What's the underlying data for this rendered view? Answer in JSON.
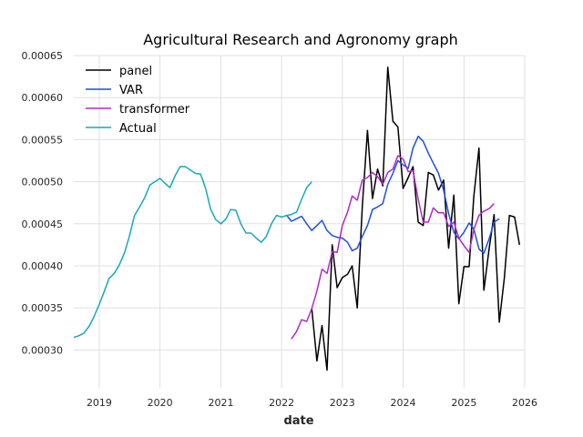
{
  "chart_data": {
    "type": "line",
    "title": "Agricultural Research and Agronomy graph",
    "xlabel": "date",
    "ylabel": "",
    "xlim": [
      "2018-08-01",
      "2026-01-01"
    ],
    "ylim": [
      0.000255,
      0.00065
    ],
    "x_ticks": [
      "2019",
      "2020",
      "2021",
      "2022",
      "2023",
      "2024",
      "2025",
      "2026"
    ],
    "y_ticks": [
      "0.00030",
      "0.00035",
      "0.00040",
      "0.00045",
      "0.00050",
      "0.00055",
      "0.00060",
      "0.00065"
    ],
    "grid": true,
    "legend": "upper-left",
    "series": [
      {
        "name": "panel",
        "color": "#000000",
        "points": [
          [
            "2022-07-01",
            0.00035
          ],
          [
            "2022-08-01",
            0.000287
          ],
          [
            "2022-09-01",
            0.000329
          ],
          [
            "2022-10-01",
            0.000276
          ],
          [
            "2022-11-01",
            0.000425
          ],
          [
            "2022-12-01",
            0.000374
          ],
          [
            "2023-01-01",
            0.000386
          ],
          [
            "2023-02-01",
            0.00039
          ],
          [
            "2023-03-01",
            0.0004
          ],
          [
            "2023-04-01",
            0.00035
          ],
          [
            "2023-05-01",
            0.00047
          ],
          [
            "2023-06-01",
            0.000561
          ],
          [
            "2023-07-01",
            0.00048
          ],
          [
            "2023-08-01",
            0.000515
          ],
          [
            "2023-09-01",
            0.000495
          ],
          [
            "2023-10-01",
            0.000636
          ],
          [
            "2023-11-01",
            0.000572
          ],
          [
            "2023-12-01",
            0.000565
          ],
          [
            "2024-01-01",
            0.000492
          ],
          [
            "2024-02-01",
            0.000505
          ],
          [
            "2024-03-01",
            0.000518
          ],
          [
            "2024-04-01",
            0.000452
          ],
          [
            "2024-05-01",
            0.000448
          ],
          [
            "2024-06-01",
            0.000511
          ],
          [
            "2024-07-01",
            0.000508
          ],
          [
            "2024-08-01",
            0.00049
          ],
          [
            "2024-09-01",
            0.000502
          ],
          [
            "2024-10-01",
            0.000421
          ],
          [
            "2024-11-01",
            0.000484
          ],
          [
            "2024-12-01",
            0.000355
          ],
          [
            "2025-01-01",
            0.000399
          ],
          [
            "2025-02-01",
            0.000399
          ],
          [
            "2025-03-01",
            0.000482
          ],
          [
            "2025-04-01",
            0.00054
          ],
          [
            "2025-05-01",
            0.000371
          ],
          [
            "2025-06-01",
            0.00042
          ],
          [
            "2025-07-01",
            0.000461
          ],
          [
            "2025-08-01",
            0.000333
          ],
          [
            "2025-09-01",
            0.000386
          ],
          [
            "2025-10-01",
            0.00046
          ],
          [
            "2025-11-01",
            0.000458
          ],
          [
            "2025-12-01",
            0.000425
          ]
        ]
      },
      {
        "name": "VAR",
        "color": "#1f4fe0",
        "points": [
          [
            "2022-02-01",
            0.00046
          ],
          [
            "2022-03-01",
            0.000453
          ],
          [
            "2022-04-01",
            0.000456
          ],
          [
            "2022-05-01",
            0.000459
          ],
          [
            "2022-06-01",
            0.00045
          ],
          [
            "2022-07-01",
            0.000442
          ],
          [
            "2022-08-01",
            0.000448
          ],
          [
            "2022-09-01",
            0.000454
          ],
          [
            "2022-10-01",
            0.000442
          ],
          [
            "2022-11-01",
            0.000436
          ],
          [
            "2022-12-01",
            0.000434
          ],
          [
            "2023-01-01",
            0.000433
          ],
          [
            "2023-02-01",
            0.000428
          ],
          [
            "2023-03-01",
            0.000418
          ],
          [
            "2023-04-01",
            0.000421
          ],
          [
            "2023-05-01",
            0.000435
          ],
          [
            "2023-06-01",
            0.000448
          ],
          [
            "2023-07-01",
            0.000467
          ],
          [
            "2023-08-01",
            0.00047
          ],
          [
            "2023-09-01",
            0.000474
          ],
          [
            "2023-10-01",
            0.000497
          ],
          [
            "2023-11-01",
            0.00051
          ],
          [
            "2023-12-01",
            0.000525
          ],
          [
            "2024-01-01",
            0.00052
          ],
          [
            "2024-02-01",
            0.000516
          ],
          [
            "2024-03-01",
            0.00054
          ],
          [
            "2024-04-01",
            0.000554
          ],
          [
            "2024-05-01",
            0.000548
          ],
          [
            "2024-06-01",
            0.000534
          ],
          [
            "2024-07-01",
            0.000522
          ],
          [
            "2024-08-01",
            0.00051
          ],
          [
            "2024-09-01",
            0.00049
          ],
          [
            "2024-10-01",
            0.000462
          ],
          [
            "2024-11-01",
            0.00044
          ],
          [
            "2024-12-01",
            0.000432
          ],
          [
            "2025-01-01",
            0.00044
          ],
          [
            "2025-02-01",
            0.000451
          ],
          [
            "2025-03-01",
            0.000444
          ],
          [
            "2025-04-01",
            0.00042
          ],
          [
            "2025-05-01",
            0.000415
          ],
          [
            "2025-06-01",
            0.000432
          ],
          [
            "2025-07-01",
            0.000452
          ],
          [
            "2025-08-01",
            0.000456
          ]
        ]
      },
      {
        "name": "transformer",
        "color": "#b02bc4",
        "points": [
          [
            "2022-03-01",
            0.000313
          ],
          [
            "2022-04-01",
            0.000322
          ],
          [
            "2022-05-01",
            0.000336
          ],
          [
            "2022-06-01",
            0.000334
          ],
          [
            "2022-07-01",
            0.000349
          ],
          [
            "2022-08-01",
            0.00037
          ],
          [
            "2022-09-01",
            0.000396
          ],
          [
            "2022-10-01",
            0.000391
          ],
          [
            "2022-11-01",
            0.000417
          ],
          [
            "2022-12-01",
            0.000416
          ],
          [
            "2023-01-01",
            0.000448
          ],
          [
            "2023-02-01",
            0.000464
          ],
          [
            "2023-03-01",
            0.000483
          ],
          [
            "2023-04-01",
            0.000478
          ],
          [
            "2023-05-01",
            0.000502
          ],
          [
            "2023-06-01",
            0.000505
          ],
          [
            "2023-07-01",
            0.000511
          ],
          [
            "2023-08-01",
            0.000506
          ],
          [
            "2023-09-01",
            0.000497
          ],
          [
            "2023-10-01",
            0.000511
          ],
          [
            "2023-11-01",
            0.000515
          ],
          [
            "2023-12-01",
            0.000531
          ],
          [
            "2024-01-01",
            0.000527
          ],
          [
            "2024-02-01",
            0.000512
          ],
          [
            "2024-03-01",
            0.000513
          ],
          [
            "2024-04-01",
            0.000479
          ],
          [
            "2024-05-01",
            0.000452
          ],
          [
            "2024-06-01",
            0.000452
          ],
          [
            "2024-07-01",
            0.000469
          ],
          [
            "2024-08-01",
            0.000463
          ],
          [
            "2024-09-01",
            0.000463
          ],
          [
            "2024-10-01",
            0.000447
          ],
          [
            "2024-11-01",
            0.000452
          ],
          [
            "2024-12-01",
            0.000433
          ],
          [
            "2025-01-01",
            0.000424
          ],
          [
            "2025-02-01",
            0.000416
          ],
          [
            "2025-03-01",
            0.000443
          ],
          [
            "2025-04-01",
            0.00046
          ],
          [
            "2025-05-01",
            0.000465
          ],
          [
            "2025-06-01",
            0.000468
          ],
          [
            "2025-07-01",
            0.000474
          ]
        ]
      },
      {
        "name": "Actual",
        "color": "#17a9b8",
        "points": [
          [
            "2018-08-01",
            0.000315
          ],
          [
            "2018-09-01",
            0.000317
          ],
          [
            "2018-10-01",
            0.00032
          ],
          [
            "2018-11-01",
            0.000328
          ],
          [
            "2018-12-01",
            0.00034
          ],
          [
            "2019-01-01",
            0.000354
          ],
          [
            "2019-02-01",
            0.00037
          ],
          [
            "2019-03-01",
            0.000385
          ],
          [
            "2019-04-01",
            0.000391
          ],
          [
            "2019-05-01",
            0.000401
          ],
          [
            "2019-06-01",
            0.000415
          ],
          [
            "2019-07-01",
            0.000435
          ],
          [
            "2019-08-01",
            0.00046
          ],
          [
            "2019-09-01",
            0.00047
          ],
          [
            "2019-10-01",
            0.000481
          ],
          [
            "2019-11-01",
            0.000496
          ],
          [
            "2019-12-01",
            0.0005
          ],
          [
            "2020-01-01",
            0.000504
          ],
          [
            "2020-02-01",
            0.000498
          ],
          [
            "2020-03-01",
            0.000493
          ],
          [
            "2020-04-01",
            0.000507
          ],
          [
            "2020-05-01",
            0.000518
          ],
          [
            "2020-06-01",
            0.000518
          ],
          [
            "2020-07-01",
            0.000514
          ],
          [
            "2020-08-01",
            0.00051
          ],
          [
            "2020-09-01",
            0.000509
          ],
          [
            "2020-10-01",
            0.000492
          ],
          [
            "2020-11-01",
            0.000467
          ],
          [
            "2020-12-01",
            0.000455
          ],
          [
            "2021-01-01",
            0.00045
          ],
          [
            "2021-02-01",
            0.000456
          ],
          [
            "2021-03-01",
            0.000467
          ],
          [
            "2021-04-01",
            0.000466
          ],
          [
            "2021-05-01",
            0.00045
          ],
          [
            "2021-06-01",
            0.000439
          ],
          [
            "2021-07-01",
            0.000439
          ],
          [
            "2021-08-01",
            0.000433
          ],
          [
            "2021-09-01",
            0.000428
          ],
          [
            "2021-10-01",
            0.000435
          ],
          [
            "2021-11-01",
            0.00045
          ],
          [
            "2021-12-01",
            0.00046
          ],
          [
            "2022-01-01",
            0.000458
          ],
          [
            "2022-02-01",
            0.00046
          ],
          [
            "2022-03-01",
            0.000461
          ],
          [
            "2022-04-01",
            0.000464
          ],
          [
            "2022-05-01",
            0.000479
          ],
          [
            "2022-06-01",
            0.000493
          ],
          [
            "2022-07-01",
            0.0005
          ]
        ]
      }
    ]
  }
}
